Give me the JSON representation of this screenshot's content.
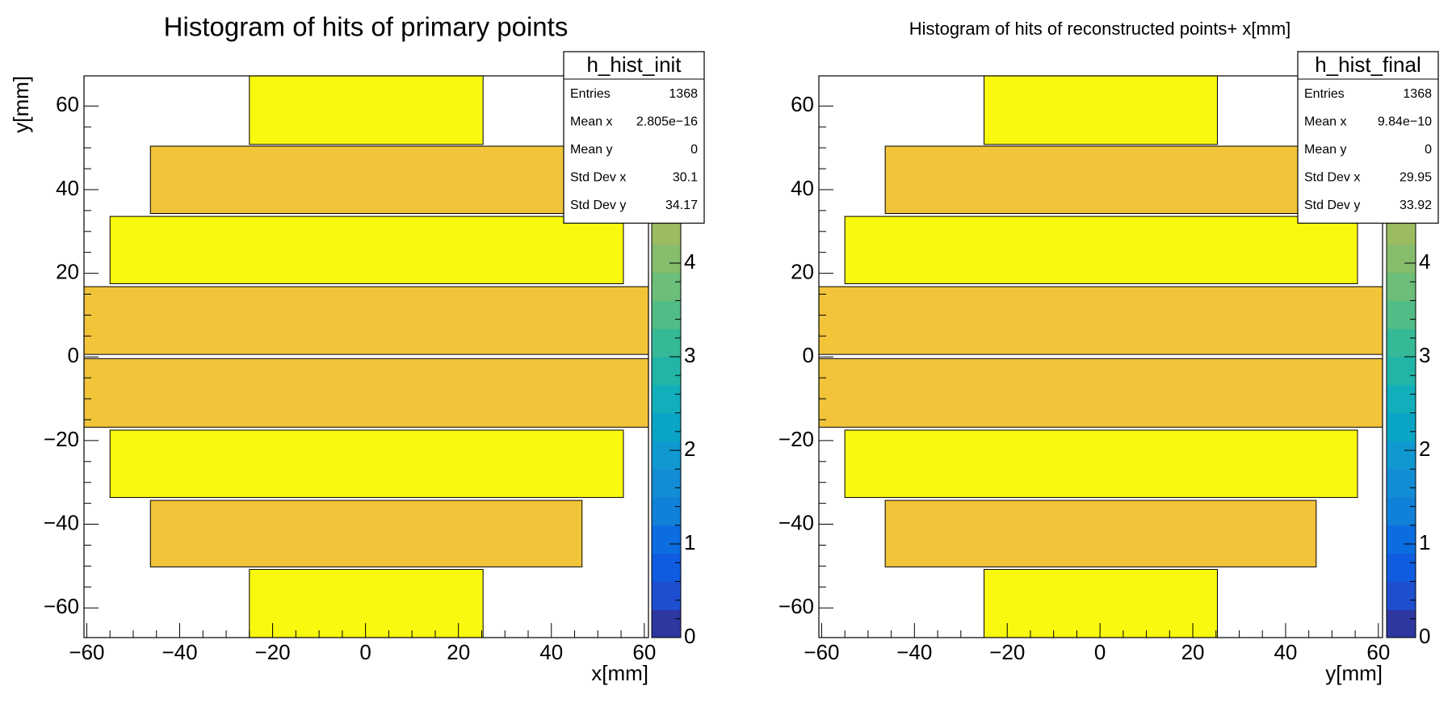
{
  "chart_data": [
    {
      "type": "hist2d",
      "title": "Histogram of hits of primary points",
      "x_label": "x[mm]",
      "y_label": "y[mm]",
      "xlim": [
        -60.6,
        60.9
      ],
      "ylim": [
        -67.1,
        67.2
      ],
      "zlim": [
        0,
        6
      ],
      "xticks": [
        {
          "value": -60,
          "label": "−60"
        },
        {
          "value": -40,
          "label": "−40"
        },
        {
          "value": -20,
          "label": "−20"
        },
        0,
        20,
        40,
        60
      ],
      "yticks": [
        {
          "value": -60,
          "label": "−60"
        },
        {
          "value": -40,
          "label": "−40"
        },
        {
          "value": -20,
          "label": "−20"
        },
        0,
        20,
        40,
        60
      ],
      "zticks": [
        0,
        1,
        2,
        3,
        4
      ],
      "palette": [
        "#2e37a0",
        "#1f4fd1",
        "#0f5ce0",
        "#0b6ddf",
        "#1080d8",
        "#128cd4",
        "#1098d0",
        "#0aa5c5",
        "#13aebc",
        "#21b5a8",
        "#35b997",
        "#52bc86",
        "#6cbe78",
        "#86bd6c",
        "#9cbc62",
        "#b1ba58",
        "#c5b84f",
        "#d8b846",
        "#e9bb3e",
        "#f7c635"
      ],
      "bins": [
        {
          "x": [
            -25,
            25.3
          ],
          "y": [
            50.8,
            67.2
          ],
          "z": 6,
          "color": "#f9f90f"
        },
        {
          "x": [
            -46.3,
            46.6
          ],
          "y": [
            34.3,
            50.4
          ],
          "z": 5.5,
          "color": "#f2c43a"
        },
        {
          "x": [
            -55,
            55.5
          ],
          "y": [
            17.5,
            33.6
          ],
          "z": 6,
          "color": "#f9f90f"
        },
        {
          "x": [
            -60.6,
            60.9
          ],
          "y": [
            0.6,
            16.8
          ],
          "z": 5.5,
          "color": "#f2c43a"
        },
        {
          "x": [
            -60.6,
            60.9
          ],
          "y": [
            -16.8,
            -0.4
          ],
          "z": 5.5,
          "color": "#f2c43a"
        },
        {
          "x": [
            -55,
            55.5
          ],
          "y": [
            -33.6,
            -17.5
          ],
          "z": 6,
          "color": "#f9f90f"
        },
        {
          "x": [
            -46.3,
            46.6
          ],
          "y": [
            -50.2,
            -34.3
          ],
          "z": 5.5,
          "color": "#f2c43a"
        },
        {
          "x": [
            -25,
            25.3
          ],
          "y": [
            -67.1,
            -50.8
          ],
          "z": 6,
          "color": "#f9f90f"
        }
      ],
      "stats": {
        "name": "h_hist_init",
        "rows": [
          [
            "Entries",
            "1368"
          ],
          [
            "Mean x",
            "2.805e−16"
          ],
          [
            "Mean y",
            "0"
          ],
          [
            "Std Dev x",
            "30.1"
          ],
          [
            "Std Dev y",
            "34.17"
          ]
        ]
      }
    },
    {
      "type": "hist2d",
      "title": "Histogram of hits of reconstructed points+ x[mm]",
      "x_label": "y[mm]",
      "xlim": [
        -60.6,
        60.9
      ],
      "ylim": [
        -67.1,
        67.2
      ],
      "zlim": [
        0,
        6
      ],
      "xticks": [
        {
          "value": -60,
          "label": "−60"
        },
        {
          "value": -40,
          "label": "−40"
        },
        {
          "value": -20,
          "label": "−20"
        },
        0,
        20,
        40,
        60
      ],
      "yticks": [
        {
          "value": -60,
          "label": "−60"
        },
        {
          "value": -40,
          "label": "−40"
        },
        {
          "value": -20,
          "label": "−20"
        },
        0,
        20,
        40,
        60
      ],
      "zticks": [
        0,
        1,
        2,
        3,
        4
      ],
      "palette": [
        "#2e37a0",
        "#1f4fd1",
        "#0f5ce0",
        "#0b6ddf",
        "#1080d8",
        "#128cd4",
        "#1098d0",
        "#0aa5c5",
        "#13aebc",
        "#21b5a8",
        "#35b997",
        "#52bc86",
        "#6cbe78",
        "#86bd6c",
        "#9cbc62",
        "#b1ba58",
        "#c5b84f",
        "#d8b846",
        "#e9bb3e",
        "#f7c635"
      ],
      "bins": [
        {
          "x": [
            -25,
            25.3
          ],
          "y": [
            50.8,
            67.2
          ],
          "z": 6,
          "color": "#f9f90f"
        },
        {
          "x": [
            -46.3,
            46.6
          ],
          "y": [
            34.3,
            50.4
          ],
          "z": 5.5,
          "color": "#f2c43a"
        },
        {
          "x": [
            -55,
            55.5
          ],
          "y": [
            17.5,
            33.6
          ],
          "z": 6,
          "color": "#f9f90f"
        },
        {
          "x": [
            -60.6,
            60.9
          ],
          "y": [
            0.6,
            16.8
          ],
          "z": 5.5,
          "color": "#f2c43a"
        },
        {
          "x": [
            -60.6,
            60.9
          ],
          "y": [
            -16.8,
            -0.4
          ],
          "z": 5.5,
          "color": "#f2c43a"
        },
        {
          "x": [
            -55,
            55.5
          ],
          "y": [
            -33.6,
            -17.5
          ],
          "z": 6,
          "color": "#f9f90f"
        },
        {
          "x": [
            -46.3,
            46.6
          ],
          "y": [
            -50.2,
            -34.3
          ],
          "z": 5.5,
          "color": "#f2c43a"
        },
        {
          "x": [
            -25,
            25.3
          ],
          "y": [
            -67.1,
            -50.8
          ],
          "z": 6,
          "color": "#f9f90f"
        }
      ],
      "stats": {
        "name": "h_hist_final",
        "rows": [
          [
            "Entries",
            "1368"
          ],
          [
            "Mean x",
            "9.84e−10"
          ],
          [
            "Mean y",
            "0"
          ],
          [
            "Std Dev x",
            "29.95"
          ],
          [
            "Std Dev y",
            "33.92"
          ]
        ]
      }
    }
  ]
}
